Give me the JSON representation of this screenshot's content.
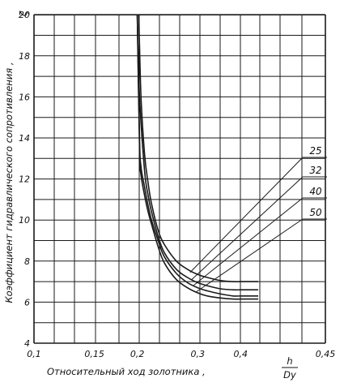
{
  "chart_data": {
    "type": "line",
    "title": "",
    "xlabel": "Относительный ход золотника ,",
    "xlabel_fraction": {
      "numerator": "h",
      "denominator": "Dy"
    },
    "ylabel": "Коэффициент гидравлического сопротивления ,",
    "ylabel_symbol": "ζ",
    "xscale": "log",
    "xlim": [
      0.1,
      0.45
    ],
    "ylim": [
      4,
      20
    ],
    "xticks": [
      {
        "value": 0.1,
        "label": "0,1"
      },
      {
        "value": 0.15,
        "label": "0,15"
      },
      {
        "value": 0.2,
        "label": "0,2"
      },
      {
        "value": 0.3,
        "label": "0,3"
      },
      {
        "value": 0.4,
        "label": "0,4"
      },
      {
        "value": 0.45,
        "label": "0,45"
      }
    ],
    "yticks": [
      {
        "value": 4,
        "label": "4"
      },
      {
        "value": 6,
        "label": "6"
      },
      {
        "value": 8,
        "label": "8"
      },
      {
        "value": 10,
        "label": "10"
      },
      {
        "value": 12,
        "label": "12"
      },
      {
        "value": 14,
        "label": "14"
      },
      {
        "value": 16,
        "label": "16"
      },
      {
        "value": 18,
        "label": "18"
      },
      {
        "value": 20,
        "label": "20"
      }
    ],
    "grid": true,
    "series": [
      {
        "name": "25",
        "x": [
          0.202,
          0.205,
          0.21,
          0.215,
          0.22,
          0.23,
          0.24,
          0.26,
          0.28,
          0.3,
          0.32,
          0.35,
          0.38,
          0.4,
          0.42,
          0.45
        ],
        "y": [
          20,
          16,
          13.2,
          11.8,
          10.8,
          9.5,
          8.8,
          8.0,
          7.6,
          7.35,
          7.2,
          7.05,
          7.0,
          7.0,
          7.0,
          7.0
        ]
      },
      {
        "name": "32",
        "x": [
          0.2,
          0.203,
          0.21,
          0.215,
          0.22,
          0.23,
          0.24,
          0.26,
          0.28,
          0.3,
          0.32,
          0.35,
          0.38,
          0.4,
          0.42,
          0.45
        ],
        "y": [
          20,
          16,
          12.4,
          11.2,
          10.4,
          9.2,
          8.4,
          7.6,
          7.2,
          6.95,
          6.8,
          6.65,
          6.6,
          6.6,
          6.6,
          6.6
        ]
      },
      {
        "name": "40",
        "x": [
          0.2,
          0.203,
          0.205,
          0.21,
          0.215,
          0.22,
          0.23,
          0.24,
          0.26,
          0.28,
          0.3,
          0.32,
          0.35,
          0.38,
          0.4,
          0.42,
          0.45
        ],
        "y": [
          20,
          14,
          12.6,
          11.6,
          10.7,
          10.0,
          9.0,
          8.2,
          7.4,
          6.95,
          6.7,
          6.55,
          6.4,
          6.3,
          6.3,
          6.3,
          6.3
        ]
      },
      {
        "name": "50",
        "x": [
          0.2,
          0.203,
          0.205,
          0.21,
          0.215,
          0.22,
          0.23,
          0.24,
          0.26,
          0.28,
          0.3,
          0.32,
          0.35,
          0.38,
          0.4,
          0.42,
          0.45
        ],
        "y": [
          20,
          13.4,
          12.2,
          11.2,
          10.4,
          9.8,
          8.7,
          7.9,
          7.1,
          6.7,
          6.45,
          6.3,
          6.2,
          6.15,
          6.15,
          6.15,
          6.15
        ]
      }
    ],
    "annotations": [
      {
        "label": "25",
        "points_to_x": 0.285,
        "points_to_y": 7.45
      },
      {
        "label": "32",
        "points_to_x": 0.288,
        "points_to_y": 7.1
      },
      {
        "label": "40",
        "points_to_x": 0.292,
        "points_to_y": 6.82
      },
      {
        "label": "50",
        "points_to_x": 0.297,
        "points_to_y": 6.5
      }
    ],
    "colors": {
      "line": "#1a1a1a",
      "grid": "#1a1a1a",
      "background": "#ffffff"
    }
  }
}
